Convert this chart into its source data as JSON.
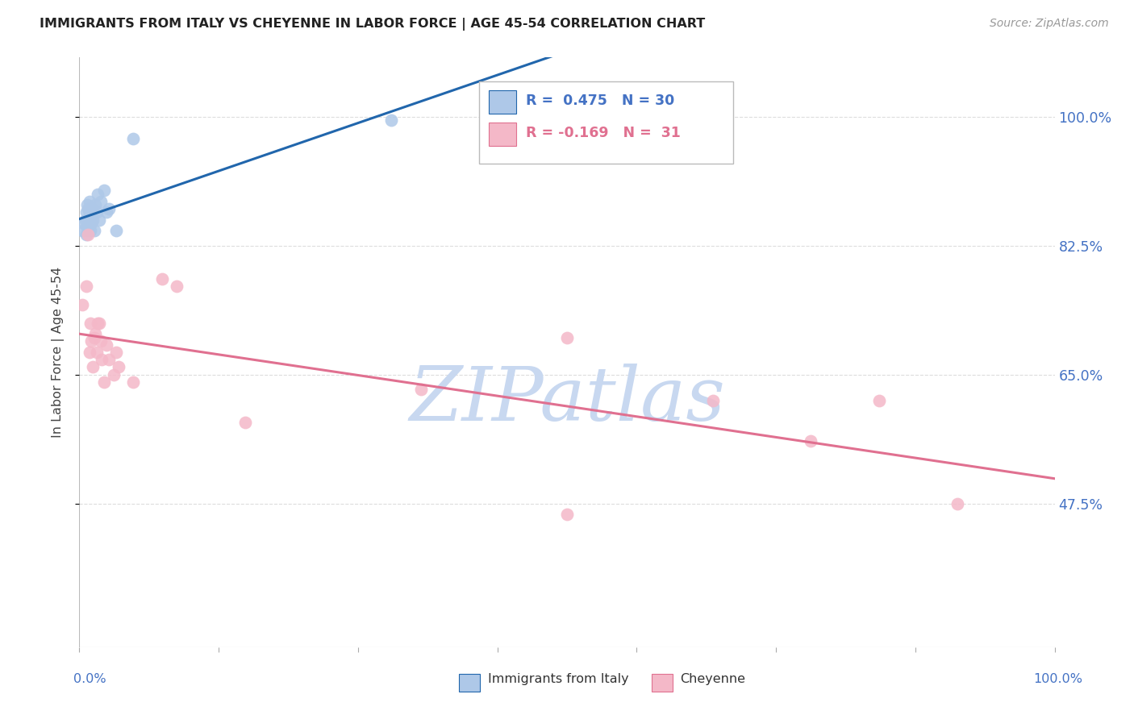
{
  "title": "IMMIGRANTS FROM ITALY VS CHEYENNE IN LABOR FORCE | AGE 45-54 CORRELATION CHART",
  "source": "Source: ZipAtlas.com",
  "ylabel": "In Labor Force | Age 45-54",
  "legend_r1": "R =  0.475",
  "legend_n1": "N = 30",
  "legend_r2": "R = -0.169",
  "legend_n2": "N =  31",
  "legend_label1": "Immigrants from Italy",
  "legend_label2": "Cheyenne",
  "ytick_labels": [
    "100.0%",
    "82.5%",
    "65.0%",
    "47.5%"
  ],
  "ytick_values": [
    1.0,
    0.825,
    0.65,
    0.475
  ],
  "xlim": [
    0.0,
    1.0
  ],
  "ylim": [
    0.28,
    1.08
  ],
  "color_blue": "#aec8e8",
  "color_pink": "#f4b8c8",
  "color_line_blue": "#2166ac",
  "color_line_pink": "#e07090",
  "color_blue_text": "#4472c4",
  "color_pink_text": "#e07090",
  "color_axis_right": "#4472c4",
  "background": "#ffffff",
  "italy_x": [
    0.003,
    0.005,
    0.006,
    0.007,
    0.007,
    0.008,
    0.008,
    0.009,
    0.009,
    0.009,
    0.01,
    0.01,
    0.01,
    0.011,
    0.011,
    0.012,
    0.013,
    0.014,
    0.015,
    0.016,
    0.018,
    0.019,
    0.02,
    0.022,
    0.025,
    0.028,
    0.03,
    0.038,
    0.055,
    0.32
  ],
  "italy_y": [
    0.845,
    0.855,
    0.86,
    0.84,
    0.87,
    0.85,
    0.88,
    0.845,
    0.86,
    0.875,
    0.855,
    0.87,
    0.885,
    0.845,
    0.865,
    0.855,
    0.875,
    0.86,
    0.845,
    0.88,
    0.87,
    0.895,
    0.86,
    0.885,
    0.9,
    0.87,
    0.875,
    0.845,
    0.97,
    0.995
  ],
  "cheyenne_x": [
    0.003,
    0.007,
    0.009,
    0.01,
    0.011,
    0.012,
    0.014,
    0.015,
    0.016,
    0.018,
    0.019,
    0.02,
    0.022,
    0.023,
    0.025,
    0.028,
    0.03,
    0.035,
    0.038,
    0.04,
    0.055,
    0.085,
    0.1,
    0.17,
    0.35,
    0.5,
    0.65,
    0.75,
    0.82,
    0.9,
    0.5
  ],
  "cheyenne_y": [
    0.745,
    0.77,
    0.84,
    0.68,
    0.72,
    0.695,
    0.66,
    0.7,
    0.705,
    0.68,
    0.72,
    0.72,
    0.695,
    0.67,
    0.64,
    0.69,
    0.67,
    0.65,
    0.68,
    0.66,
    0.64,
    0.78,
    0.77,
    0.585,
    0.63,
    0.7,
    0.615,
    0.56,
    0.615,
    0.475,
    0.46
  ],
  "watermark": "ZIPatlas",
  "watermark_color": "#c8d8f0",
  "grid_color": "#dddddd",
  "spine_color": "#cccccc"
}
